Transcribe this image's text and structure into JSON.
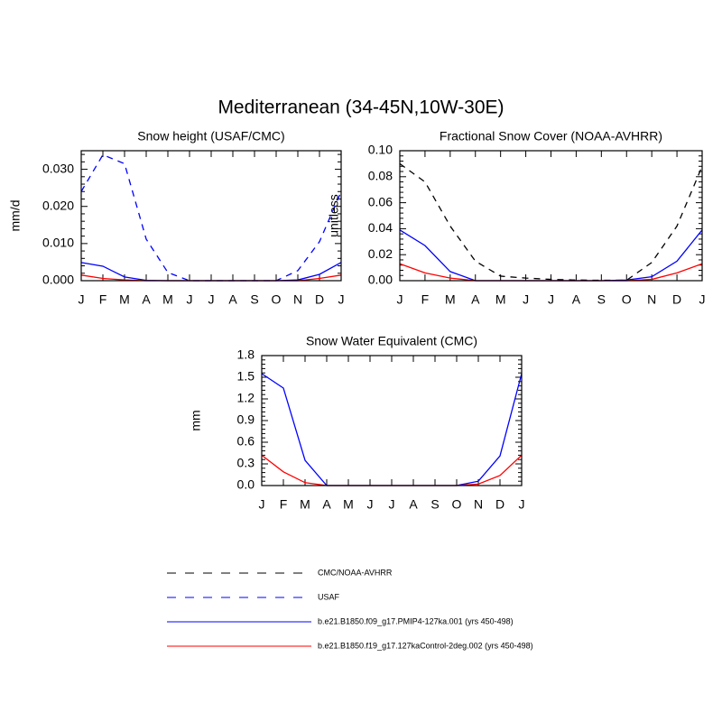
{
  "title": "Mediterranean (34-45N,10W-30E)",
  "chart_data": [
    {
      "type": "line",
      "title": "Snow height (USAF/CMC)",
      "y_label": "mm/d",
      "categories": [
        "J",
        "F",
        "M",
        "A",
        "M",
        "J",
        "J",
        "A",
        "S",
        "O",
        "N",
        "D",
        "J"
      ],
      "ylim": [
        0,
        0.035
      ],
      "yticks": [
        {
          "value": 0,
          "label": "0.000"
        },
        {
          "value": 0.01,
          "label": "0.010"
        },
        {
          "value": 0.02,
          "label": "0.020"
        },
        {
          "value": 0.03,
          "label": "0.030"
        }
      ],
      "series": [
        {
          "name": "USAF",
          "color": "#0000ff",
          "dashed": true,
          "values": [
            0.024,
            0.0339,
            0.0315,
            0.0112,
            0.0022,
            0,
            0,
            0,
            0,
            0,
            0.0027,
            0.0105,
            0.024
          ]
        },
        {
          "name": "b.e21.B1850.f09_g17.PMIP4-127ka.001 (yrs 450-498)",
          "color": "#0000ff",
          "dashed": false,
          "values": [
            0.0049,
            0.0039,
            0.001,
            0.0001,
            0,
            0,
            0,
            0,
            0,
            0,
            0.0002,
            0.0017,
            0.0049
          ]
        },
        {
          "name": "b.e21.B1850.f19_g17.127kaControl-2deg.002 (yrs 450-498)",
          "color": "#ff0000",
          "dashed": false,
          "values": [
            0.0015,
            0.0006,
            0.0002,
            0,
            0,
            0,
            0,
            0,
            0,
            0,
            0,
            0.0006,
            0.0015
          ]
        }
      ]
    },
    {
      "type": "line",
      "title": "Fractional Snow Cover (NOAA-AVHRR)",
      "y_label": "unitless",
      "categories": [
        "J",
        "F",
        "M",
        "A",
        "M",
        "J",
        "J",
        "A",
        "S",
        "O",
        "N",
        "D",
        "J"
      ],
      "ylim": [
        0,
        0.1
      ],
      "yticks": [
        {
          "value": 0,
          "label": "0.00"
        },
        {
          "value": 0.02,
          "label": "0.02"
        },
        {
          "value": 0.04,
          "label": "0.04"
        },
        {
          "value": 0.06,
          "label": "0.06"
        },
        {
          "value": 0.08,
          "label": "0.08"
        },
        {
          "value": 0.1,
          "label": "0.10"
        }
      ],
      "series": [
        {
          "name": "CMC/NOAA-AVHRR",
          "color": "#000000",
          "dashed": true,
          "values": [
            0.09,
            0.076,
            0.042,
            0.015,
            0.0035,
            0.002,
            0.001,
            0.0005,
            0.0003,
            0.0003,
            0.014,
            0.042,
            0.088
          ]
        },
        {
          "name": "b.e21.B1850.f09_g17.PMIP4-127ka.001 (yrs 450-498)",
          "color": "#0000ff",
          "dashed": false,
          "values": [
            0.039,
            0.027,
            0.007,
            0,
            0,
            0,
            0,
            0,
            0,
            0.0005,
            0.003,
            0.015,
            0.039
          ]
        },
        {
          "name": "b.e21.B1850.f19_g17.127kaControl-2deg.002 (yrs 450-498)",
          "color": "#ff0000",
          "dashed": false,
          "values": [
            0.013,
            0.006,
            0.002,
            0,
            0,
            0,
            0,
            0,
            0,
            0,
            0.001,
            0.006,
            0.013
          ]
        }
      ]
    },
    {
      "type": "line",
      "title": "Snow Water Equivalent (CMC)",
      "y_label": "mm",
      "categories": [
        "J",
        "F",
        "M",
        "A",
        "M",
        "J",
        "J",
        "A",
        "S",
        "O",
        "N",
        "D",
        "J"
      ],
      "ylim": [
        0,
        1.8
      ],
      "yticks": [
        {
          "value": 0,
          "label": "0.0"
        },
        0.3,
        0.6,
        0.9,
        1.2,
        1.5,
        1.8
      ],
      "series": [
        {
          "name": "b.e21.B1850.f09_g17.PMIP4-127ka.001 (yrs 450-498)",
          "color": "#0000ff",
          "dashed": false,
          "values": [
            1.55,
            1.35,
            0.35,
            0,
            0,
            0,
            0,
            0,
            0,
            0,
            0.06,
            0.41,
            1.55
          ]
        },
        {
          "name": "b.e21.B1850.f19_g17.127kaControl-2deg.002 (yrs 450-498)",
          "color": "#ff0000",
          "dashed": false,
          "values": [
            0.42,
            0.19,
            0.04,
            0,
            0,
            0,
            0,
            0,
            0,
            0,
            0.02,
            0.14,
            0.42
          ]
        }
      ]
    }
  ]
}
